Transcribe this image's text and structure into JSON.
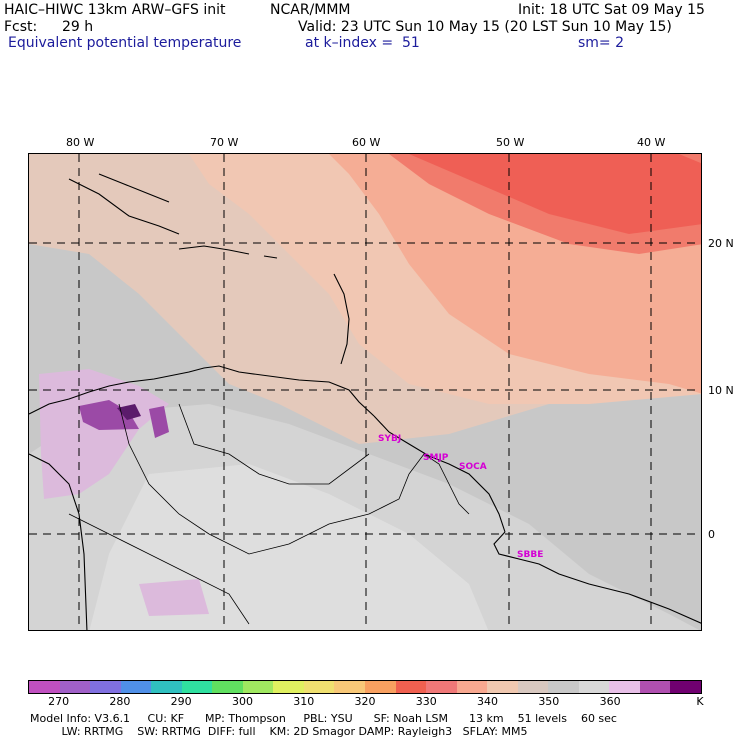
{
  "header": {
    "model": "HAIC–HIWC 13km ARW–GFS init",
    "center": "NCAR/MMM",
    "init": "Init: 18 UTC Sat 09 May 15",
    "fcst_label": "Fcst:",
    "fcst_value": "29 h",
    "valid": "Valid: 23 UTC Sun 10 May 15 (20 LST Sun 10 May 15)",
    "field": "Equivalent potential temperature",
    "level": "at k–index =  51",
    "smoothing": "sm= 2"
  },
  "map": {
    "lon_labels": [
      "80 W",
      "70 W",
      "60 W",
      "50 W",
      "40 W"
    ],
    "lat_labels": [
      "20 N",
      "10 N",
      "0"
    ],
    "sites": [
      "SYBJ",
      "SMJP",
      "SOCA",
      "SBBE"
    ]
  },
  "colorbar": {
    "colors": [
      "#c050c0",
      "#a060c8",
      "#8070e0",
      "#5090e8",
      "#30c0c0",
      "#30e0a0",
      "#60e060",
      "#a0e860",
      "#e0f060",
      "#f0e070",
      "#f8c878",
      "#f8a060",
      "#f06050",
      "#f07878",
      "#f8a890",
      "#f0c8b0",
      "#d8c8c0",
      "#c8c8c8",
      "#d8d8d8",
      "#e8c0e8",
      "#b050b0",
      "#700070"
    ],
    "ticks": [
      "270",
      "280",
      "290",
      "300",
      "310",
      "320",
      "330",
      "340",
      "350",
      "360"
    ],
    "unit": "K"
  },
  "footer": {
    "line1": "Model Info: V3.6.1     CU: KF      MP: Thompson     PBL: YSU      SF: Noah LSM      13 km    51 levels    60 sec",
    "line2": "         LW: RRTMG    SW: RRTMG  DIFF: full    KM: 2D Smagor DAMP: Rayleigh3   SFLAY: MM5"
  }
}
